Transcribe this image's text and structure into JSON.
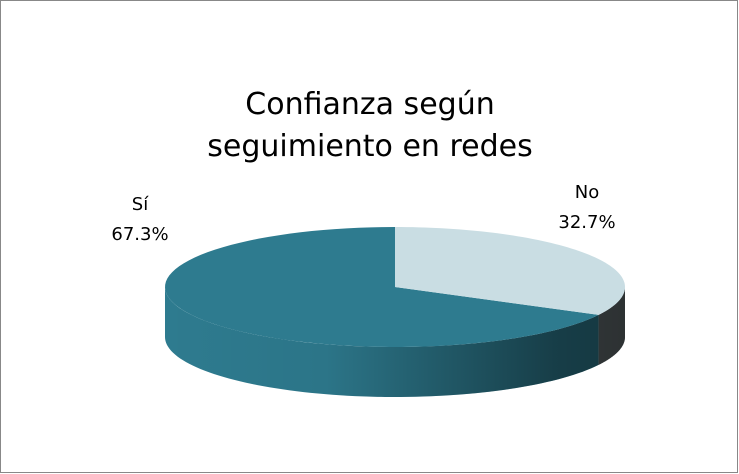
{
  "chart_data": {
    "type": "pie3d",
    "title": "Confianza según seguimiento en redes",
    "categories": [
      "Sí",
      "No"
    ],
    "values": [
      67.3,
      32.7
    ],
    "value_labels": [
      "67.3%",
      "32.7%"
    ],
    "colors": [
      "#2e7b8f",
      "#c9dde3"
    ]
  }
}
